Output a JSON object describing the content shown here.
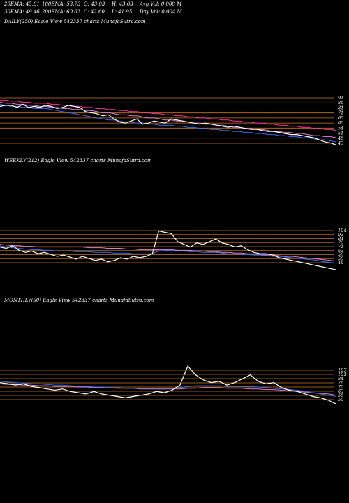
{
  "header": {
    "ema20": "20EMA: 45.81",
    "ema100": "100EMA: 53.73",
    "open": "O: 43.03",
    "high": "H: 43.03",
    "avg_vol": "Avg Vol: 0.008  M",
    "ema30": "30EMA: 49.46",
    "ema200": "200EMA: 60.63",
    "close": "C: 42.60",
    "low": "L: 41.95",
    "day_vol": "Day Vol: 0.004  M"
  },
  "panels": {
    "daily_title": "DAILY(250) Eagle  View  542337 charts MunafaSutra.com",
    "weekly_title": "WEEKLY(212) Eagle  View  542337 charts MunafaSutra.com",
    "monthly_title": "MONTHLY(50) Eagle  View  542337 charts MunafaSutra.com"
  },
  "colors": {
    "price": "#ffffff",
    "ema_short": "#3a6cf0",
    "ema_mid": "#d97fd9",
    "ema_long": "#ff2fa0",
    "ema_brown": "#a0643a",
    "level_line": "#c9781e",
    "background": "#000000"
  },
  "chart_data": [
    {
      "type": "line",
      "title": "DAILY(250)",
      "ylim": [
        38,
        95
      ],
      "tick_labels": [
        "91",
        "86",
        "81",
        "71",
        "65",
        "60",
        "54",
        "51",
        "46",
        "43"
      ],
      "series": [
        {
          "values": [
            80,
            81,
            81,
            79,
            82,
            79,
            80,
            79,
            81,
            80,
            78,
            79,
            81,
            80,
            79,
            75,
            74,
            73,
            71,
            72,
            68,
            65,
            64,
            66,
            68,
            63,
            64,
            66,
            65,
            64,
            68,
            67,
            66,
            65,
            64,
            63,
            64,
            63,
            62,
            61,
            60,
            61,
            60,
            59,
            58,
            58,
            57,
            56,
            56,
            55,
            54,
            53,
            53,
            52,
            51,
            50,
            48,
            46,
            45,
            43
          ]
        },
        {
          "values": [
            82,
            81,
            80,
            80,
            79,
            79,
            78,
            78,
            78,
            77,
            76,
            75,
            74,
            73,
            72,
            71,
            70,
            69,
            68,
            67,
            67,
            66,
            65,
            65,
            64,
            64,
            63,
            63,
            62,
            62,
            62,
            61,
            61,
            60,
            60,
            59,
            59,
            58,
            58,
            57,
            57,
            56,
            56,
            55,
            55,
            54,
            54,
            53,
            53,
            52,
            52,
            51,
            51,
            50,
            50,
            49,
            48,
            48,
            47,
            46
          ]
        },
        {
          "values": [
            84,
            83,
            83,
            82,
            82,
            81,
            81,
            80,
            80,
            79,
            79,
            78,
            78,
            77,
            77,
            76,
            76,
            75,
            74,
            74,
            73,
            72,
            72,
            71,
            71,
            70,
            69,
            69,
            68,
            67,
            67,
            66,
            66,
            65,
            64,
            64,
            63,
            63,
            62,
            62,
            61,
            60,
            60,
            59,
            59,
            58,
            58,
            57,
            56,
            56,
            55,
            55,
            54,
            54,
            53,
            52,
            52,
            51,
            51,
            50
          ]
        },
        {
          "values": [
            86,
            86,
            85,
            85,
            84,
            84,
            83,
            83,
            83,
            82,
            82,
            81,
            81,
            80,
            80,
            79,
            79,
            78,
            78,
            77,
            77,
            76,
            76,
            75,
            75,
            74,
            74,
            73,
            73,
            72,
            72,
            71,
            71,
            70,
            70,
            69,
            69,
            68,
            68,
            67,
            67,
            66,
            66,
            65,
            65,
            64,
            64,
            63,
            63,
            62,
            62,
            61,
            61,
            60,
            60,
            59,
            59,
            58,
            58,
            57
          ]
        }
      ]
    },
    {
      "type": "line",
      "title": "WEEKLY(212)",
      "ylim": [
        40,
        115
      ],
      "tick_labels": [
        "104",
        "92",
        "84",
        "76",
        "71",
        "62",
        "56",
        "50",
        "46"
      ],
      "series": [
        {
          "values": [
            80,
            78,
            82,
            75,
            72,
            74,
            70,
            72,
            69,
            66,
            68,
            65,
            62,
            66,
            63,
            60,
            62,
            58,
            60,
            64,
            62,
            66,
            64,
            66,
            70,
            104,
            102,
            100,
            88,
            84,
            80,
            86,
            84,
            88,
            92,
            86,
            84,
            80,
            82,
            76,
            72,
            70,
            70,
            68,
            64,
            62,
            60,
            58,
            56,
            54,
            52,
            50,
            48,
            46
          ]
        },
        {
          "values": [
            82,
            80,
            79,
            78,
            77,
            76,
            76,
            75,
            75,
            74,
            74,
            74,
            73,
            73,
            73,
            72,
            72,
            72,
            71,
            71,
            71,
            70,
            70,
            70,
            70,
            74,
            75,
            75,
            74,
            74,
            73,
            73,
            72,
            72,
            72,
            71,
            70,
            70,
            69,
            69,
            68,
            68,
            67,
            66,
            66,
            65,
            64,
            63,
            62,
            61,
            60,
            58,
            57,
            56
          ]
        },
        {
          "values": [
            84,
            83,
            82,
            82,
            81,
            81,
            80,
            80,
            80,
            80,
            80,
            80,
            80,
            80,
            79,
            79,
            79,
            78,
            78,
            78,
            77,
            77,
            76,
            76,
            76,
            76,
            76,
            76,
            75,
            75,
            75,
            74,
            74,
            73,
            73,
            72,
            72,
            71,
            71,
            70,
            70,
            69,
            68,
            68,
            67,
            66,
            66,
            65,
            64,
            63,
            62,
            61,
            60,
            59
          ]
        }
      ]
    },
    {
      "type": "line",
      "title": "MONTHLY(50)",
      "ylim": [
        35,
        120
      ],
      "tick_labels": [
        "107",
        "101",
        "84",
        "76",
        "70",
        "63",
        "56",
        "50"
      ],
      "series": [
        {
          "values": [
            84,
            82,
            80,
            82,
            78,
            76,
            74,
            72,
            74,
            70,
            68,
            66,
            70,
            66,
            64,
            62,
            60,
            62,
            64,
            66,
            70,
            68,
            72,
            80,
            110,
            96,
            88,
            84,
            86,
            80,
            84,
            90,
            96,
            86,
            82,
            84,
            76,
            72,
            70,
            66,
            62,
            60,
            56,
            50
          ]
        },
        {
          "values": [
            86,
            85,
            84,
            83,
            82,
            82,
            81,
            80,
            80,
            79,
            78,
            78,
            77,
            77,
            76,
            76,
            75,
            75,
            75,
            75,
            75,
            75,
            75,
            76,
            78,
            79,
            79,
            79,
            79,
            78,
            78,
            78,
            78,
            77,
            76,
            75,
            74,
            73,
            72,
            70,
            68,
            66,
            64,
            62
          ]
        },
        {
          "values": [
            82,
            81,
            81,
            80,
            80,
            79,
            79,
            78,
            78,
            78,
            77,
            77,
            76,
            76,
            76,
            75,
            75,
            75,
            74,
            74,
            74,
            74,
            74,
            74,
            75,
            75,
            76,
            76,
            76,
            75,
            75,
            75,
            74,
            74,
            73,
            73,
            72,
            71,
            70,
            69,
            68,
            67,
            66,
            64
          ]
        }
      ]
    }
  ]
}
